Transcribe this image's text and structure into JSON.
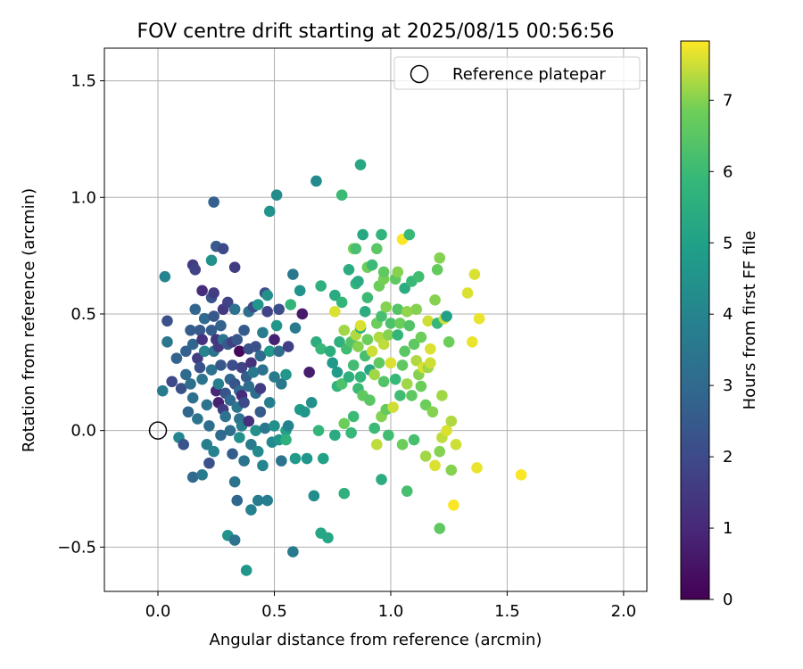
{
  "chart_data": {
    "type": "scatter",
    "title": "FOV centre drift starting at 2025/08/15 00:56:56",
    "xlabel": "Angular distance from reference (arcmin)",
    "ylabel": "Rotation from reference (arcmin)",
    "xlim": [
      -0.23,
      2.1
    ],
    "ylim": [
      -0.69,
      1.64
    ],
    "xticks": [
      0.0,
      0.5,
      1.0,
      1.5,
      2.0
    ],
    "xtick_labels": [
      "0.0",
      "0.5",
      "1.0",
      "1.5",
      "2.0"
    ],
    "yticks": [
      -0.5,
      0.0,
      0.5,
      1.0,
      1.5
    ],
    "ytick_labels": [
      "−0.5",
      "0.0",
      "0.5",
      "1.0",
      "1.5"
    ],
    "grid": true,
    "legend": {
      "placement": "top-right",
      "entries": [
        "Reference platepar"
      ]
    },
    "reference_point": {
      "x": 0.0,
      "y": 0.0,
      "label": "Reference platepar"
    },
    "colorbar": {
      "label": "Hours from first FF file",
      "colormap": "viridis",
      "range": [
        0,
        7.83
      ],
      "ticks": [
        0,
        1,
        2,
        3,
        4,
        5,
        6,
        7
      ],
      "tick_labels": [
        "0",
        "1",
        "2",
        "3",
        "4",
        "5",
        "6",
        "7"
      ]
    },
    "points": [
      [
        0.02,
        0.17,
        3.6
      ],
      [
        0.04,
        0.47,
        2.2
      ],
      [
        0.04,
        0.38,
        3.5
      ],
      [
        0.03,
        0.66,
        4.0
      ],
      [
        0.06,
        0.21,
        2.0
      ],
      [
        0.08,
        0.31,
        2.8
      ],
      [
        0.09,
        -0.03,
        4.0
      ],
      [
        0.1,
        0.18,
        2.2
      ],
      [
        0.11,
        -0.06,
        2.3
      ],
      [
        0.12,
        0.34,
        2.7
      ],
      [
        0.12,
        0.24,
        3.0
      ],
      [
        0.13,
        0.08,
        2.9
      ],
      [
        0.14,
        0.43,
        2.6
      ],
      [
        0.14,
        0.2,
        3.2
      ],
      [
        0.15,
        0.37,
        2.9
      ],
      [
        0.15,
        0.71,
        1.6
      ],
      [
        0.15,
        0.14,
        3.2
      ],
      [
        0.15,
        -0.2,
        3.0
      ],
      [
        0.16,
        0.69,
        1.8
      ],
      [
        0.16,
        0.52,
        2.9
      ],
      [
        0.17,
        0.31,
        1.6
      ],
      [
        0.17,
        0.05,
        3.4
      ],
      [
        0.18,
        0.43,
        2.5
      ],
      [
        0.18,
        0.27,
        2.2
      ],
      [
        0.19,
        0.6,
        1.1
      ],
      [
        0.19,
        0.39,
        1.3
      ],
      [
        0.19,
        0.22,
        3.4
      ],
      [
        0.19,
        -0.19,
        3.6
      ],
      [
        0.2,
        0.48,
        3.0
      ],
      [
        0.2,
        0.34,
        4.0
      ],
      [
        0.21,
        0.11,
        3.4
      ],
      [
        0.21,
        -0.06,
        3.8
      ],
      [
        0.22,
        0.02,
        3.2
      ],
      [
        0.22,
        -0.14,
        2.2
      ],
      [
        0.23,
        0.57,
        2.3
      ],
      [
        0.23,
        0.43,
        2.6
      ],
      [
        0.23,
        0.26,
        3.4
      ],
      [
        0.23,
        0.73,
        4.4
      ],
      [
        0.24,
        0.59,
        1.6
      ],
      [
        0.24,
        0.49,
        2.4
      ],
      [
        0.24,
        0.98,
        2.7
      ],
      [
        0.24,
        0.34,
        3.4
      ],
      [
        0.24,
        -0.09,
        3.9
      ],
      [
        0.25,
        0.39,
        1.4
      ],
      [
        0.25,
        0.17,
        1.0
      ],
      [
        0.25,
        0.79,
        2.5
      ],
      [
        0.26,
        0.36,
        1.5
      ],
      [
        0.26,
        0.2,
        3.8
      ],
      [
        0.26,
        0.12,
        0.8
      ],
      [
        0.27,
        0.45,
        2.8
      ],
      [
        0.27,
        0.28,
        2.4
      ],
      [
        0.27,
        -0.02,
        3.0
      ],
      [
        0.28,
        0.78,
        2.0
      ],
      [
        0.28,
        0.52,
        1.5
      ],
      [
        0.28,
        0.39,
        3.4
      ],
      [
        0.28,
        0.09,
        1.6
      ],
      [
        0.29,
        0.16,
        2.3
      ],
      [
        0.29,
        0.06,
        3.3
      ],
      [
        0.3,
        0.55,
        1.8
      ],
      [
        0.3,
        0.37,
        2.5
      ],
      [
        0.3,
        -0.45,
        4.5
      ],
      [
        0.31,
        0.22,
        2.9
      ],
      [
        0.31,
        0.13,
        3.0
      ],
      [
        0.31,
        0.0,
        3.2
      ],
      [
        0.32,
        0.38,
        1.7
      ],
      [
        0.32,
        0.28,
        2.1
      ],
      [
        0.32,
        -0.1,
        2.6
      ],
      [
        0.33,
        0.52,
        3.3
      ],
      [
        0.33,
        0.7,
        1.6
      ],
      [
        0.33,
        0.2,
        2.3
      ],
      [
        0.33,
        -0.22,
        3.4
      ],
      [
        0.33,
        -0.47,
        3.3
      ],
      [
        0.34,
        0.39,
        2.4
      ],
      [
        0.34,
        0.1,
        3.5
      ],
      [
        0.34,
        -0.3,
        2.9
      ],
      [
        0.35,
        0.34,
        0.2
      ],
      [
        0.35,
        0.17,
        3.0
      ],
      [
        0.35,
        0.05,
        3.3
      ],
      [
        0.35,
        -0.03,
        4.4
      ],
      [
        0.36,
        0.27,
        1.8
      ],
      [
        0.36,
        0.15,
        1.1
      ],
      [
        0.36,
        0.02,
        3.8
      ],
      [
        0.37,
        0.43,
        2.5
      ],
      [
        0.37,
        0.12,
        2.0
      ],
      [
        0.37,
        -0.13,
        3.4
      ],
      [
        0.38,
        0.23,
        2.6
      ],
      [
        0.38,
        -0.6,
        4.6
      ],
      [
        0.39,
        0.51,
        3.2
      ],
      [
        0.39,
        0.35,
        2.2
      ],
      [
        0.39,
        0.19,
        3.1
      ],
      [
        0.39,
        0.04,
        1.2
      ],
      [
        0.4,
        0.29,
        1.3
      ],
      [
        0.4,
        -0.06,
        3.6
      ],
      [
        0.4,
        -0.34,
        3.9
      ],
      [
        0.41,
        0.53,
        2.1
      ],
      [
        0.41,
        0.25,
        3.6
      ],
      [
        0.42,
        0.36,
        2.2
      ],
      [
        0.42,
        0.16,
        3.1
      ],
      [
        0.42,
        0.0,
        4.4
      ],
      [
        0.43,
        0.54,
        4.6
      ],
      [
        0.43,
        -0.09,
        4.2
      ],
      [
        0.43,
        -0.3,
        3.7
      ],
      [
        0.44,
        0.32,
        3.0
      ],
      [
        0.44,
        0.18,
        1.6
      ],
      [
        0.44,
        0.08,
        2.6
      ],
      [
        0.45,
        0.42,
        3.7
      ],
      [
        0.45,
        0.26,
        3.3
      ],
      [
        0.45,
        -0.15,
        4.0
      ],
      [
        0.46,
        0.59,
        2.1
      ],
      [
        0.46,
        0.01,
        3.5
      ],
      [
        0.47,
        0.51,
        1.8
      ],
      [
        0.47,
        0.58,
        4.4
      ],
      [
        0.47,
        -0.3,
        3.8
      ],
      [
        0.48,
        0.34,
        4.7
      ],
      [
        0.48,
        0.94,
        4.5
      ],
      [
        0.48,
        0.12,
        3.8
      ],
      [
        0.49,
        -0.05,
        4.2
      ],
      [
        0.5,
        0.39,
        0.8
      ],
      [
        0.5,
        0.23,
        3.6
      ],
      [
        0.5,
        0.02,
        4.4
      ],
      [
        0.51,
        0.45,
        4.6
      ],
      [
        0.51,
        1.01,
        4.3
      ],
      [
        0.52,
        0.52,
        2.1
      ],
      [
        0.52,
        0.34,
        3.1
      ],
      [
        0.52,
        -0.04,
        4.6
      ],
      [
        0.53,
        0.2,
        3.5
      ],
      [
        0.53,
        -0.13,
        3.4
      ],
      [
        0.55,
        0.24,
        4.6
      ],
      [
        0.55,
        0.0,
        5.0
      ],
      [
        0.55,
        -0.04,
        5.6
      ],
      [
        0.56,
        0.36,
        1.7
      ],
      [
        0.56,
        0.02,
        3.9
      ],
      [
        0.57,
        0.54,
        5.8
      ],
      [
        0.58,
        0.67,
        3.5
      ],
      [
        0.58,
        -0.52,
        3.6
      ],
      [
        0.59,
        0.44,
        3.6
      ],
      [
        0.59,
        -0.12,
        4.8
      ],
      [
        0.61,
        0.09,
        4.8
      ],
      [
        0.61,
        0.6,
        4.5
      ],
      [
        0.62,
        0.5,
        0.6
      ],
      [
        0.63,
        0.08,
        4.6
      ],
      [
        0.64,
        -0.12,
        4.6
      ],
      [
        0.65,
        0.25,
        0.7
      ],
      [
        0.66,
        0.12,
        4.4
      ],
      [
        0.67,
        -0.28,
        4.3
      ],
      [
        0.68,
        0.38,
        5.5
      ],
      [
        0.68,
        1.07,
        4.2
      ],
      [
        0.69,
        0.0,
        5.8
      ],
      [
        0.7,
        -0.44,
        5.2
      ],
      [
        0.7,
        0.35,
        5.9
      ],
      [
        0.7,
        0.62,
        5.6
      ],
      [
        0.71,
        -0.12,
        5.0
      ],
      [
        0.73,
        -0.46,
        5.2
      ],
      [
        0.74,
        0.34,
        5.5
      ],
      [
        0.75,
        0.29,
        4.7
      ],
      [
        0.76,
        0.58,
        5.4
      ],
      [
        0.76,
        0.51,
        7.6
      ],
      [
        0.76,
        -0.02,
        5.4
      ],
      [
        0.77,
        0.19,
        5.7
      ],
      [
        0.77,
        0.25,
        4.8
      ],
      [
        0.78,
        0.38,
        5.6
      ],
      [
        0.79,
        1.01,
        6.0
      ],
      [
        0.79,
        0.2,
        6.3
      ],
      [
        0.79,
        0.55,
        5.8
      ],
      [
        0.8,
        -0.27,
        5.6
      ],
      [
        0.8,
        0.03,
        6.8
      ],
      [
        0.8,
        0.43,
        7.2
      ],
      [
        0.81,
        0.35,
        6.1
      ],
      [
        0.82,
        0.23,
        5.6
      ],
      [
        0.82,
        0.69,
        5.5
      ],
      [
        0.83,
        0.38,
        6.4
      ],
      [
        0.83,
        -0.01,
        5.9
      ],
      [
        0.84,
        0.28,
        6.1
      ],
      [
        0.84,
        0.78,
        6.9
      ],
      [
        0.84,
        0.06,
        6.0
      ],
      [
        0.85,
        0.41,
        7.3
      ],
      [
        0.85,
        0.63,
        5.7
      ],
      [
        0.85,
        0.78,
        6.2
      ],
      [
        0.86,
        0.36,
        7.0
      ],
      [
        0.86,
        0.18,
        6.0
      ],
      [
        0.86,
        0.64,
        5.4
      ],
      [
        0.87,
        0.23,
        5.8
      ],
      [
        0.87,
        0.44,
        5.6
      ],
      [
        0.87,
        1.14,
        5.3
      ],
      [
        0.87,
        0.45,
        7.6
      ],
      [
        0.88,
        0.84,
        5.3
      ],
      [
        0.88,
        0.15,
        6.6
      ],
      [
        0.89,
        0.32,
        6.2
      ],
      [
        0.89,
        0.51,
        5.5
      ],
      [
        0.9,
        0.7,
        6.8
      ],
      [
        0.9,
        0.39,
        6.8
      ],
      [
        0.9,
        0.57,
        6.0
      ],
      [
        0.91,
        0.13,
        6.5
      ],
      [
        0.91,
        0.26,
        5.2
      ],
      [
        0.92,
        0.71,
        6.0
      ],
      [
        0.92,
        0.34,
        7.5
      ],
      [
        0.93,
        0.24,
        7.2
      ],
      [
        0.93,
        0.01,
        6.0
      ],
      [
        0.94,
        0.78,
        6.5
      ],
      [
        0.94,
        0.46,
        6.8
      ],
      [
        0.94,
        -0.06,
        7.4
      ],
      [
        0.95,
        0.62,
        6.8
      ],
      [
        0.95,
        0.4,
        7.3
      ],
      [
        0.95,
        0.29,
        6.6
      ],
      [
        0.96,
        0.06,
        7.0
      ],
      [
        0.96,
        -0.21,
        5.5
      ],
      [
        0.96,
        0.84,
        5.7
      ],
      [
        0.96,
        0.49,
        6.2
      ],
      [
        0.97,
        0.21,
        6.4
      ],
      [
        0.97,
        0.65,
        6.9
      ],
      [
        0.97,
        0.37,
        7.4
      ],
      [
        0.97,
        0.68,
        6.6
      ],
      [
        0.98,
        0.53,
        7.0
      ],
      [
        0.98,
        0.09,
        6.7
      ],
      [
        0.99,
        0.41,
        7.0
      ],
      [
        0.99,
        -0.02,
        6.1
      ],
      [
        1.0,
        0.46,
        6.3
      ],
      [
        1.0,
        0.29,
        7.6
      ],
      [
        1.01,
        0.1,
        7.5
      ],
      [
        1.02,
        0.22,
        5.9
      ],
      [
        1.02,
        0.65,
        6.6
      ],
      [
        1.03,
        0.52,
        6.4
      ],
      [
        1.03,
        0.41,
        5.8
      ],
      [
        1.03,
        0.68,
        7.0
      ],
      [
        1.04,
        0.15,
        6.1
      ],
      [
        1.04,
        0.46,
        6.8
      ],
      [
        1.05,
        0.28,
        6.6
      ],
      [
        1.05,
        -0.06,
        6.8
      ],
      [
        1.05,
        0.82,
        7.8
      ],
      [
        1.06,
        0.61,
        5.5
      ],
      [
        1.06,
        0.34,
        6.5
      ],
      [
        1.07,
        0.51,
        7.1
      ],
      [
        1.07,
        0.2,
        7.2
      ],
      [
        1.07,
        -0.26,
        6.2
      ],
      [
        1.08,
        0.84,
        5.9
      ],
      [
        1.08,
        0.45,
        6.4
      ],
      [
        1.09,
        0.15,
        6.6
      ],
      [
        1.09,
        0.64,
        5.9
      ],
      [
        1.1,
        -0.04,
        6.2
      ],
      [
        1.1,
        0.37,
        6.6
      ],
      [
        1.11,
        0.3,
        7.3
      ],
      [
        1.11,
        0.52,
        7.0
      ],
      [
        1.12,
        0.66,
        6.1
      ],
      [
        1.12,
        0.24,
        7.0
      ],
      [
        1.13,
        0.19,
        6.8
      ],
      [
        1.13,
        0.4,
        6.8
      ],
      [
        1.14,
        0.27,
        7.6
      ],
      [
        1.15,
        0.11,
        6.8
      ],
      [
        1.15,
        -0.11,
        7.2
      ],
      [
        1.16,
        0.47,
        7.5
      ],
      [
        1.16,
        0.27,
        7.2
      ],
      [
        1.17,
        0.35,
        7.6
      ],
      [
        1.17,
        0.29,
        7.5
      ],
      [
        1.18,
        0.08,
        7.0
      ],
      [
        1.19,
        -0.15,
        7.6
      ],
      [
        1.19,
        0.56,
        7.0
      ],
      [
        1.2,
        0.69,
        6.7
      ],
      [
        1.2,
        0.46,
        5.9
      ],
      [
        1.21,
        -0.09,
        7.0
      ],
      [
        1.21,
        0.74,
        7.0
      ],
      [
        1.21,
        -0.42,
        6.6
      ],
      [
        1.22,
        -0.03,
        7.4
      ],
      [
        1.22,
        0.15,
        7.2
      ],
      [
        1.23,
        0.48,
        7.5
      ],
      [
        1.24,
        0.49,
        5.0
      ],
      [
        1.24,
        0.0,
        7.6
      ],
      [
        1.25,
        0.38,
        6.8
      ],
      [
        1.26,
        0.04,
        7.3
      ],
      [
        1.26,
        -0.17,
        7.0
      ],
      [
        1.27,
        -0.32,
        7.8
      ],
      [
        1.28,
        -0.06,
        7.5
      ],
      [
        1.33,
        0.59,
        7.6
      ],
      [
        1.35,
        0.38,
        7.7
      ],
      [
        1.36,
        0.67,
        7.6
      ],
      [
        1.37,
        -0.16,
        7.7
      ],
      [
        1.38,
        0.48,
        7.7
      ],
      [
        1.56,
        -0.19,
        7.8
      ]
    ]
  }
}
